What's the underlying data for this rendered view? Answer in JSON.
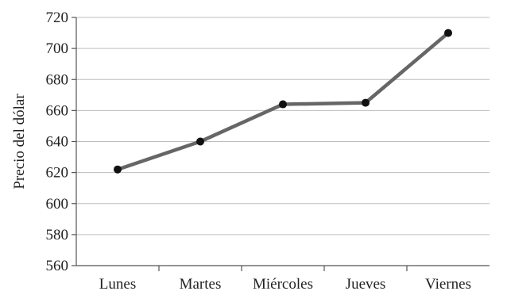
{
  "chart_data": {
    "type": "line",
    "title": "",
    "xlabel": "",
    "ylabel": "Precio del dólar",
    "categories": [
      "Lunes",
      "Martes",
      "Miércoles",
      "Jueves",
      "Viernes"
    ],
    "series": [
      {
        "values": [
          622,
          640,
          664,
          665,
          710
        ]
      }
    ],
    "ylim": [
      560,
      720
    ],
    "yticks": [
      560,
      580,
      600,
      620,
      640,
      660,
      680,
      700,
      720
    ],
    "grid": true,
    "legend": "none",
    "colors": {
      "line": "#666666",
      "marker": "#111111",
      "grid": "#bdbdbd"
    }
  }
}
